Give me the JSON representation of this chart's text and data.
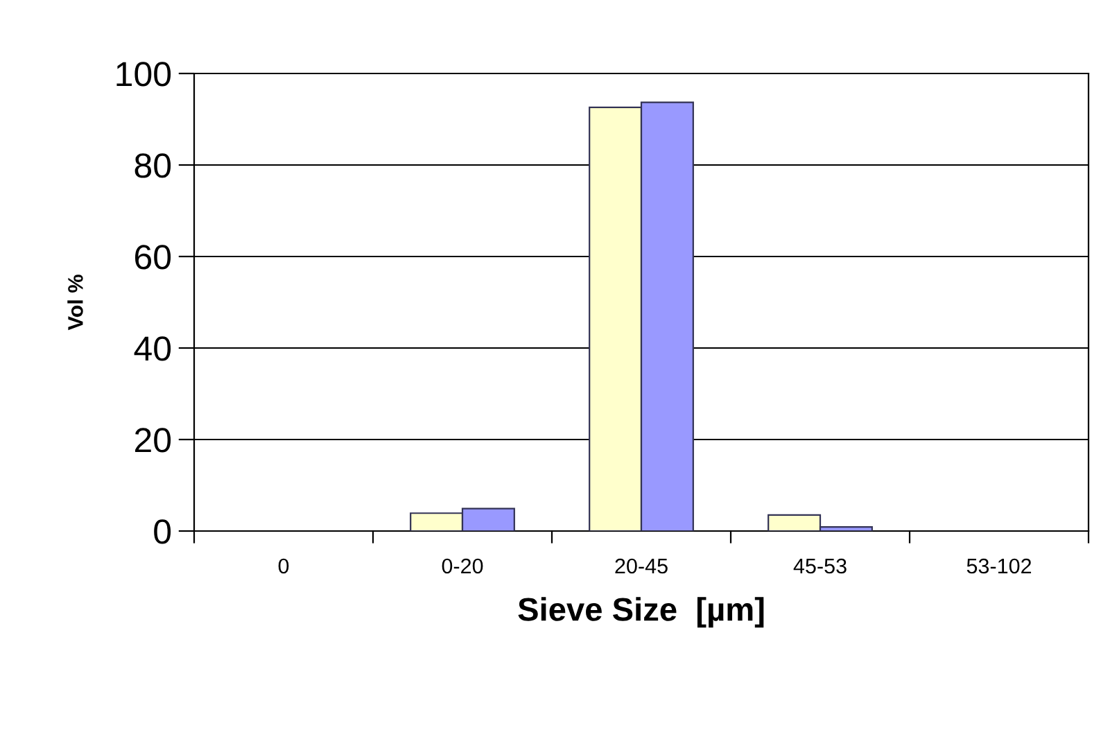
{
  "chart_data": {
    "type": "bar",
    "xlabel": "Sieve Size  [µm]",
    "ylabel": "Vol %",
    "categories": [
      "0",
      "0-20",
      "20-45",
      "45-53",
      "53-102"
    ],
    "series": [
      {
        "color": "#ffffcc",
        "values": [
          null,
          3.9,
          92.6,
          3.5,
          null
        ]
      },
      {
        "color": "#9999ff",
        "values": [
          null,
          4.9,
          93.7,
          0.9,
          null
        ]
      }
    ],
    "ylim": [
      0,
      100
    ],
    "yticks": [
      0,
      20,
      40,
      60,
      80,
      100
    ],
    "grid": "y"
  }
}
